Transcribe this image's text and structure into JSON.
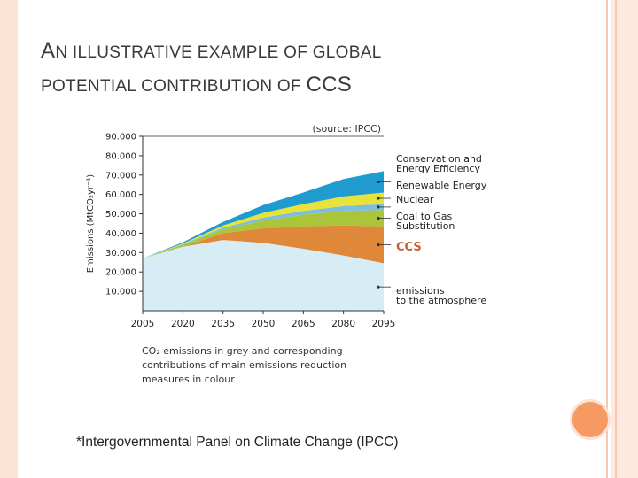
{
  "slide": {
    "title_line1_first": "A",
    "title_line1_rest": "N ILLUSTRATIVE EXAMPLE OF GLOBAL",
    "title_line2_rest": "POTENTIAL CONTRIBUTION OF",
    "title_line2_ccs": "CCS",
    "footnote": "*Intergovernmental Panel on Climate Change (IPCC)"
  },
  "chart_data": {
    "type": "area",
    "source": "(source: IPCC)",
    "ylabel": "Emissions (MtCO₂yr⁻¹)",
    "ylim": [
      0,
      90000
    ],
    "yticks": [
      10000,
      20000,
      30000,
      40000,
      50000,
      60000,
      70000,
      80000,
      90000
    ],
    "ytick_labels": [
      "10.000",
      "20.000",
      "30.000",
      "40.000",
      "50.000",
      "60.000",
      "70.000",
      "80.000",
      "90.000"
    ],
    "x": [
      2005,
      2020,
      2035,
      2050,
      2065,
      2080,
      2095
    ],
    "xtick_labels": [
      "2005",
      "2020",
      "2035",
      "2050",
      "2065",
      "2080",
      "2095"
    ],
    "caption_lines": [
      "CO₂ emissions in grey and corresponding",
      "contributions of main emissions reduction",
      "measures in colour"
    ],
    "series": [
      {
        "name": "emissions to the atmosphere",
        "label_lines": [
          "emissions",
          "to the atmosphere"
        ],
        "color": "#d6edf6",
        "values": [
          27000,
          33000,
          36500,
          35000,
          32000,
          28500,
          24500
        ]
      },
      {
        "name": "CCS",
        "label_lines": [
          "CCS"
        ],
        "color": "#e0883a",
        "values": [
          0,
          0,
          3500,
          7500,
          11500,
          15500,
          19000
        ]
      },
      {
        "name": "Coal to Gas Substitution",
        "label_lines": [
          "Coal to Gas",
          "Substitution"
        ],
        "color": "#a9c63a",
        "values": [
          0,
          1000,
          2000,
          4000,
          6000,
          7500,
          8500
        ]
      },
      {
        "name": "Nuclear",
        "label_lines": [
          "Nuclear"
        ],
        "color": "#7fbedb",
        "values": [
          0,
          300,
          800,
          1500,
          2000,
          2500,
          3000
        ]
      },
      {
        "name": "Renewable Energy",
        "label_lines": [
          "Renewable Energy"
        ],
        "color": "#e8e33a",
        "values": [
          0,
          400,
          1200,
          2500,
          3500,
          5000,
          6000
        ]
      },
      {
        "name": "Conservation and Energy Efficiency",
        "label_lines": [
          "Conservation and",
          "Energy Efficiency"
        ],
        "color": "#1f9bd0",
        "values": [
          0,
          600,
          1800,
          4000,
          6000,
          9000,
          11000
        ]
      }
    ]
  }
}
